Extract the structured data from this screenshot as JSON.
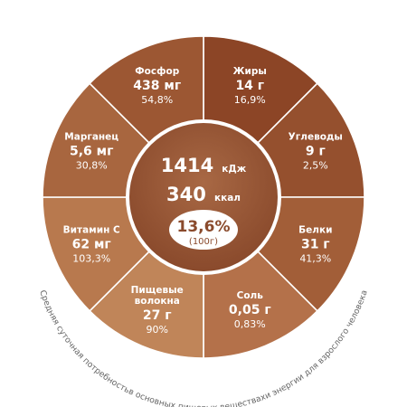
{
  "chart_data": {
    "type": "pie",
    "center": {
      "energy_kj": "1414",
      "energy_kj_unit": "кДж",
      "energy_kcal": "340",
      "energy_kcal_unit": "ккал",
      "percent": "13,6%",
      "percent_basis": "(100г)"
    },
    "segments": [
      {
        "name": "Жиры",
        "value": "14 г",
        "percent": "16,9%",
        "color": "#8c4526"
      },
      {
        "name": "Углеводы",
        "value": "9 г",
        "percent": "2,5%",
        "color": "#95502e"
      },
      {
        "name": "Белки",
        "value": "31 г",
        "percent": "41,3%",
        "color": "#a25e38"
      },
      {
        "name": "Соль",
        "value": "0,05 г",
        "percent": "0,83%",
        "color": "#b4714a"
      },
      {
        "name": "Пищевые волокна",
        "value": "27 г",
        "percent": "90%",
        "color": "#c08559"
      },
      {
        "name": "Витамин C",
        "value": "62 мг",
        "percent": "103,3%",
        "color": "#b8794e"
      },
      {
        "name": "Марганец",
        "value": "5,6 мг",
        "percent": "30,8%",
        "color": "#a8663f"
      },
      {
        "name": "Фосфор",
        "value": "438 мг",
        "percent": "54,8%",
        "color": "#9c5733"
      }
    ],
    "caption": "Средняя суточная потребностьв основных пищевых веществахи энергии для взрослого человека"
  }
}
